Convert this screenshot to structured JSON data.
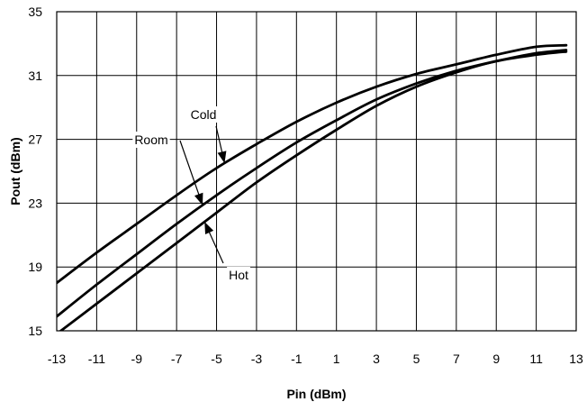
{
  "chart_data": {
    "type": "line",
    "xlabel": "Pin (dBm)",
    "ylabel": "Pout (dBm)",
    "xlim": [
      -13,
      13
    ],
    "ylim": [
      15,
      35
    ],
    "x_ticks": [
      -13,
      -11,
      -9,
      -7,
      -5,
      -3,
      -1,
      1,
      3,
      5,
      7,
      9,
      11,
      13
    ],
    "y_ticks": [
      15,
      19,
      23,
      27,
      31,
      35
    ],
    "grid": true,
    "x": [
      -13,
      -11,
      -9,
      -7,
      -5,
      -3,
      -1,
      1,
      3,
      5,
      7,
      9,
      11,
      12.5
    ],
    "series": [
      {
        "name": "Cold",
        "values": [
          18.0,
          19.9,
          21.7,
          23.5,
          25.2,
          26.7,
          28.1,
          29.3,
          30.3,
          31.1,
          31.7,
          32.3,
          32.8,
          32.9
        ]
      },
      {
        "name": "Room",
        "values": [
          15.9,
          17.9,
          19.8,
          21.7,
          23.5,
          25.2,
          26.8,
          28.2,
          29.5,
          30.5,
          31.3,
          31.9,
          32.4,
          32.6
        ]
      },
      {
        "name": "Hot",
        "values": [
          14.8,
          16.7,
          18.6,
          20.5,
          22.4,
          24.3,
          26.0,
          27.6,
          29.1,
          30.3,
          31.2,
          31.9,
          32.3,
          32.5
        ]
      }
    ],
    "annotations": [
      {
        "text": "Cold",
        "series": "Cold",
        "x": -4.6
      },
      {
        "text": "Room",
        "series": "Room",
        "x": -5.7
      },
      {
        "text": "Hot",
        "series": "Hot",
        "x": -5.6
      }
    ]
  }
}
